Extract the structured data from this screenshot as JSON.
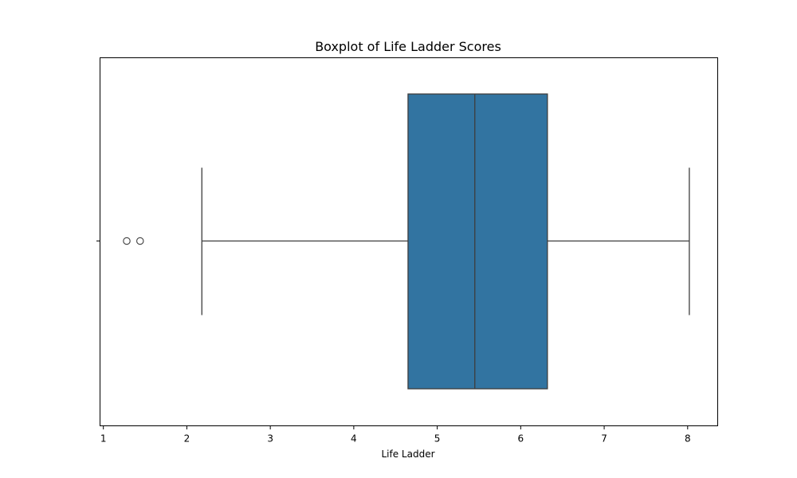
{
  "chart_data": {
    "type": "boxplot",
    "title": "Boxplot of Life Ladder Scores",
    "xlabel": "Life Ladder",
    "ylabel": "",
    "xlim": [
      0.96,
      8.36
    ],
    "xticks": [
      1,
      2,
      3,
      4,
      5,
      6,
      7,
      8
    ],
    "orientation": "horizontal",
    "box": {
      "whisker_low": 2.18,
      "q1": 4.65,
      "median": 5.45,
      "q3": 6.32,
      "whisker_high": 8.02,
      "outliers": [
        1.28,
        1.44
      ]
    },
    "colors": {
      "box_fill": "#3274a1",
      "line": "#3d3d3d",
      "frame": "#000000"
    }
  }
}
